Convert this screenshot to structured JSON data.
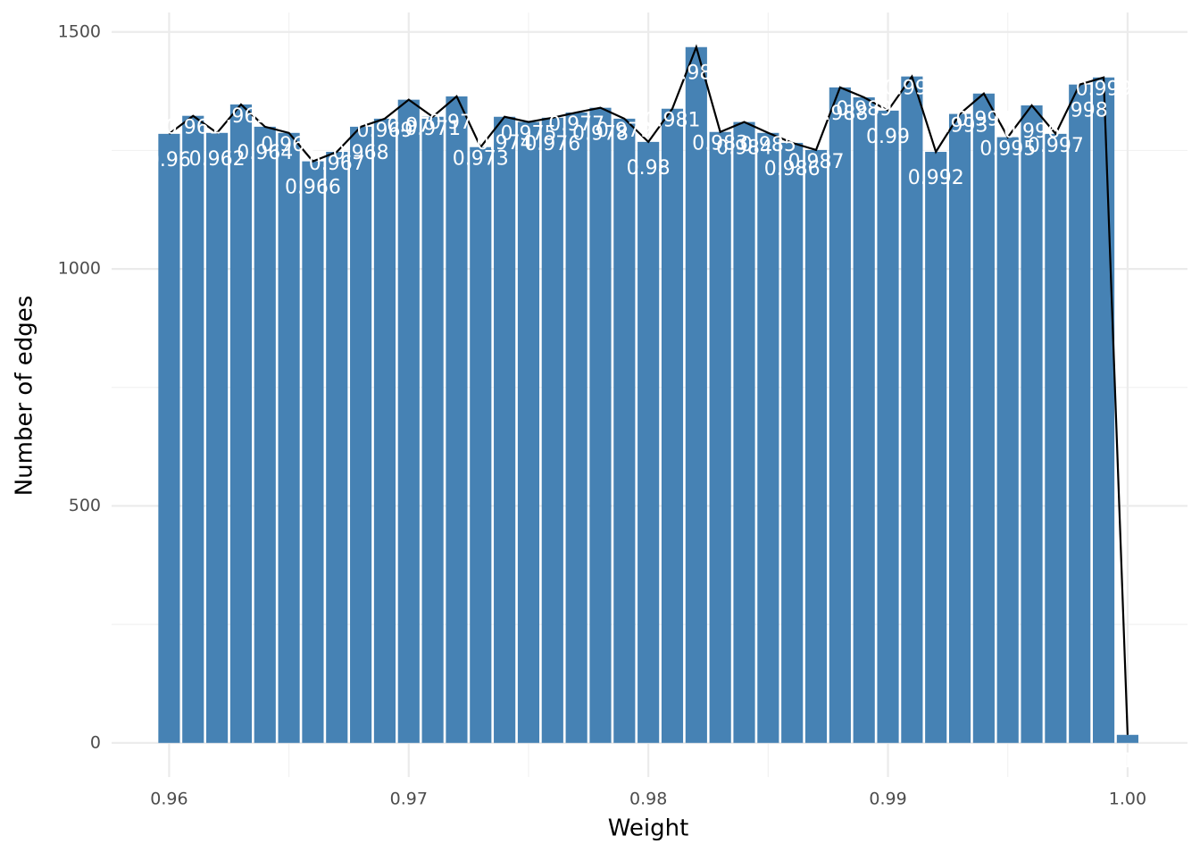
{
  "chart_data": {
    "type": "bar",
    "x_label": "Weight",
    "y_label": "Number of edges",
    "x": [
      0.96,
      0.961,
      0.962,
      0.963,
      0.964,
      0.965,
      0.966,
      0.967,
      0.968,
      0.969,
      0.97,
      0.971,
      0.972,
      0.973,
      0.974,
      0.975,
      0.976,
      0.977,
      0.978,
      0.979,
      0.98,
      0.981,
      0.982,
      0.983,
      0.984,
      0.985,
      0.986,
      0.987,
      0.988,
      0.989,
      0.99,
      0.991,
      0.992,
      0.993,
      0.994,
      0.995,
      0.996,
      0.997,
      0.998,
      0.999,
      1
    ],
    "values": [
      1285,
      1323,
      1287,
      1347,
      1300,
      1287,
      1227,
      1247,
      1300,
      1317,
      1357,
      1321,
      1364,
      1257,
      1321,
      1310,
      1319,
      1330,
      1340,
      1317,
      1268,
      1338,
      1468,
      1289,
      1310,
      1287,
      1266,
      1251,
      1383,
      1362,
      1334,
      1406,
      1247,
      1327,
      1370,
      1278,
      1345,
      1285,
      1389,
      1404,
      17
    ],
    "color": "#4682b4",
    "line_color": "#000000",
    "label_color": "#ffffff",
    "xlim": [
      0.9576,
      1.0025
    ],
    "ylim": [
      -72,
      1541
    ],
    "xticks": [
      0.96,
      0.97,
      0.98,
      0.99,
      {
        "value": 1,
        "label": "1.00"
      }
    ],
    "yticks": [
      0,
      500,
      1000,
      1500
    ],
    "grid": true
  }
}
